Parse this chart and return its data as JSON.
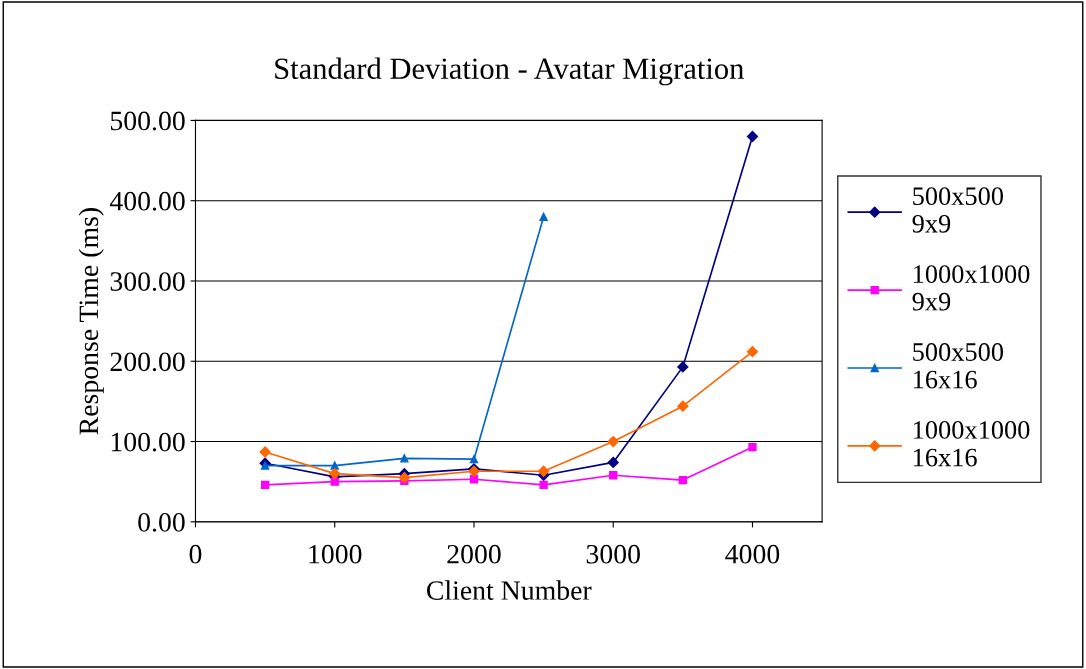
{
  "chart_data": {
    "type": "line",
    "title": "Standard Deviation - Avatar Migration",
    "xlabel": "Client Number",
    "ylabel": "Response Time (ms)",
    "x": [
      500,
      1000,
      1500,
      2000,
      2500,
      3000,
      3500,
      4000
    ],
    "series": [
      {
        "name": "500x500\n9x9",
        "color": "#000080",
        "marker": "diamond",
        "values": [
          73,
          56,
          60,
          66,
          58,
          74,
          193,
          480
        ]
      },
      {
        "name": "1000x1000\n9x9",
        "color": "#ff00ff",
        "marker": "square",
        "values": [
          46,
          50,
          51,
          53,
          46,
          58,
          52,
          93
        ]
      },
      {
        "name": "500x500\n16x16",
        "color": "#0066cc",
        "marker": "triangle",
        "values": [
          70,
          70,
          79,
          78,
          380,
          null,
          null,
          null
        ]
      },
      {
        "name": "1000x1000\n16x16",
        "color": "#ff6600",
        "marker": "diamond",
        "values": [
          87,
          60,
          55,
          63,
          63,
          100,
          144,
          212
        ]
      }
    ],
    "xlim": [
      0,
      4500
    ],
    "xticks": [
      0,
      1000,
      2000,
      3000,
      4000
    ],
    "ylim": [
      0,
      500
    ],
    "yticks": [
      {
        "value": 0,
        "label": "0.00"
      },
      {
        "value": 100,
        "label": "100.00"
      },
      {
        "value": 200,
        "label": "200.00"
      },
      {
        "value": 300,
        "label": "300.00"
      },
      {
        "value": 400,
        "label": "400.00"
      },
      {
        "value": 500,
        "label": "500.00"
      }
    ],
    "grid": "y",
    "legend": "right"
  }
}
